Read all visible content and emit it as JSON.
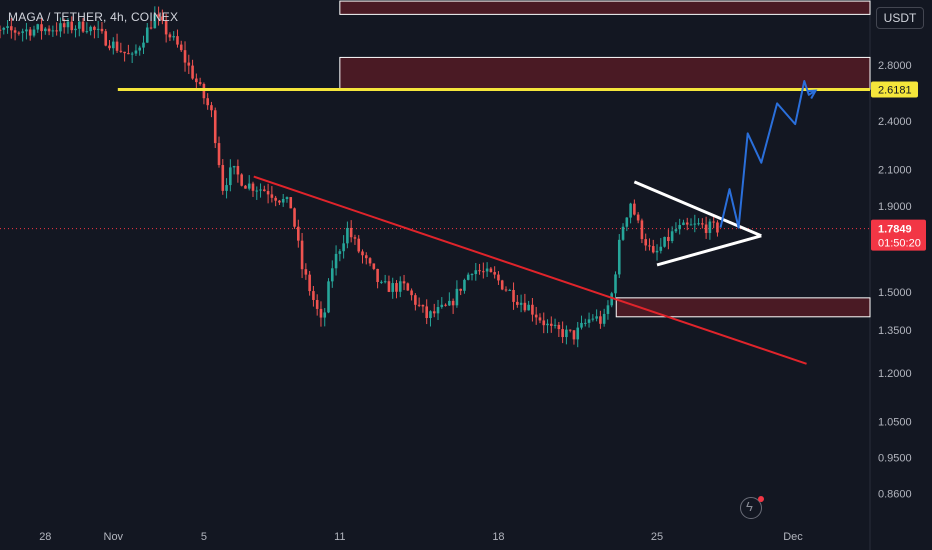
{
  "header": {
    "title": "MAGA / TETHER, 4h, COINEX",
    "currency": "USDT"
  },
  "colors": {
    "background": "#131722",
    "up": "#26a69a",
    "down": "#ef5350",
    "zone_fill": "#4a1a24",
    "yellow_line": "#f5e63b",
    "trendline": "#e0242b",
    "triangle": "#ffffff",
    "projection": "#2a6fdb",
    "last_price_bg": "#f23645",
    "level_bg": "#f5e63b"
  },
  "icons": {
    "flash": "lightning-icon"
  },
  "chart_data": {
    "type": "candlestick",
    "symbol": "MAGA / TETHER",
    "interval": "4h",
    "exchange": "COINEX",
    "y_axis": {
      "scale": "log",
      "ticks": [
        "2.8000",
        "2.4000",
        "2.1000",
        "1.9000",
        "1.5000",
        "1.3500",
        "1.2000",
        "1.0500",
        "0.9500",
        "0.8600"
      ],
      "range": [
        0.8,
        3.35
      ]
    },
    "x_axis": {
      "ticks": [
        "28",
        "Nov",
        "5",
        "11",
        "18",
        "25",
        "Dec"
      ],
      "range_days": [
        -30,
        8.4
      ],
      "tick_days": [
        -28,
        -25,
        -21,
        -15,
        -8,
        -1,
        5
      ]
    },
    "last_price": {
      "value": "1.7849",
      "countdown": "01:50:20"
    },
    "marked_level": {
      "value": "2.6181"
    },
    "price_path": [
      [
        -31,
        3.05
      ],
      [
        -26,
        3.12
      ],
      [
        -24,
        2.85
      ],
      [
        -23,
        3.2
      ],
      [
        -22,
        2.95
      ],
      [
        -20.5,
        2.45
      ],
      [
        -20,
        2.0
      ],
      [
        -19.6,
        2.1
      ],
      [
        -19,
        2.02
      ],
      [
        -18,
        1.98
      ],
      [
        -17,
        1.9
      ],
      [
        -16.5,
        1.6
      ],
      [
        -15.6,
        1.36
      ],
      [
        -15.2,
        1.6
      ],
      [
        -14.5,
        1.78
      ],
      [
        -14,
        1.68
      ],
      [
        -13,
        1.52
      ],
      [
        -12,
        1.52
      ],
      [
        -11,
        1.4
      ],
      [
        -10,
        1.44
      ],
      [
        -9,
        1.6
      ],
      [
        -8,
        1.56
      ],
      [
        -7,
        1.47
      ],
      [
        -6.5,
        1.44
      ],
      [
        -5.5,
        1.35
      ],
      [
        -4.5,
        1.33
      ],
      [
        -3.7,
        1.4
      ],
      [
        -3.2,
        1.38
      ],
      [
        -2.8,
        1.5
      ],
      [
        -2.4,
        1.78
      ],
      [
        -2.0,
        1.92
      ],
      [
        -1.6,
        1.78
      ],
      [
        -1.0,
        1.65
      ],
      [
        0.0,
        1.78
      ],
      [
        1.0,
        1.8
      ],
      [
        1.8,
        1.785
      ]
    ],
    "annotations": {
      "resistance_zones": [
        {
          "from_day": -15,
          "to_day": 8.4,
          "top": 3.34,
          "bottom": 3.22
        },
        {
          "from_day": -15,
          "to_day": 8.4,
          "top": 2.86,
          "bottom": 2.62
        }
      ],
      "support_zone": {
        "from_day": -2.8,
        "to_day": 8.4,
        "top": 1.475,
        "bottom": 1.4
      },
      "yellow_line": {
        "from_day": -24.8,
        "to_day": 8.4,
        "price": 2.6181
      },
      "descending_trendline": [
        [
          -18.8,
          2.06
        ],
        [
          5.6,
          1.23
        ]
      ],
      "triangle": {
        "upper": [
          [
            -2.0,
            2.03
          ],
          [
            3.6,
            1.75
          ]
        ],
        "lower": [
          [
            -1.0,
            1.615
          ],
          [
            3.6,
            1.75
          ]
        ]
      },
      "projection_path": [
        [
          1.8,
          1.79
        ],
        [
          2.2,
          1.99
        ],
        [
          2.6,
          1.79
        ],
        [
          3.0,
          2.32
        ],
        [
          3.6,
          2.14
        ],
        [
          4.3,
          2.52
        ],
        [
          5.1,
          2.38
        ],
        [
          5.5,
          2.68
        ],
        [
          5.7,
          2.58
        ],
        [
          6.0,
          2.61
        ]
      ]
    }
  }
}
